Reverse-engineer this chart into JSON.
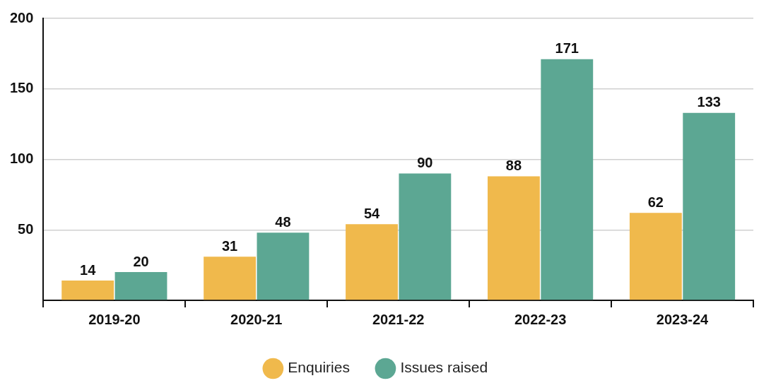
{
  "chart_data": {
    "type": "bar",
    "categories": [
      "2019-20",
      "2020-21",
      "2021-22",
      "2022-23",
      "2023-24"
    ],
    "series": [
      {
        "name": "Enquiries",
        "color": "#f0b94c",
        "values": [
          14,
          31,
          54,
          88,
          62
        ]
      },
      {
        "name": "Issues raised",
        "color": "#5ca793",
        "values": [
          20,
          48,
          90,
          171,
          133
        ]
      }
    ],
    "ylim": [
      0,
      200
    ],
    "yticks": [
      {
        "value": 0,
        "label": null
      },
      50,
      100,
      150,
      200
    ],
    "grid": "y",
    "legend": "bottom",
    "data_labels": true
  }
}
